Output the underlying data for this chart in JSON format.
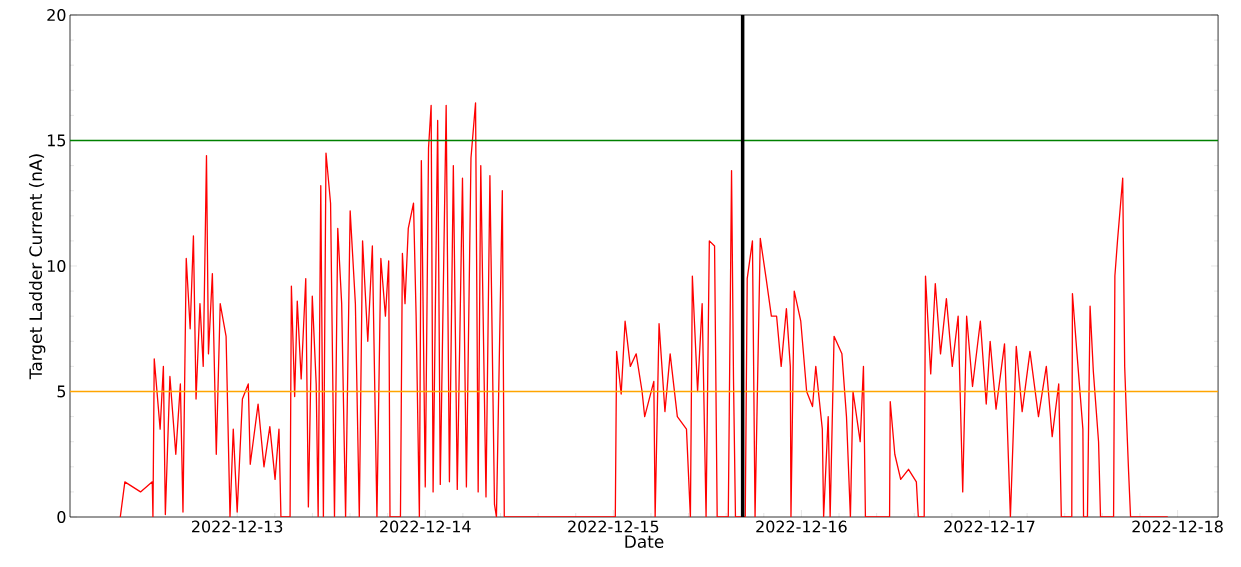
{
  "chart_data": {
    "type": "line",
    "xlabel": "Date",
    "ylabel": "Target Ladder Current (nA)",
    "xlim": [
      "2022-12-12T02:40",
      "2022-12-18T05:10"
    ],
    "xticks": [
      "2022-12-13",
      "2022-12-14",
      "2022-12-15",
      "2022-12-16",
      "2022-12-17",
      "2022-12-18"
    ],
    "ylim": [
      0,
      20
    ],
    "yticks": [
      0,
      5,
      10,
      15,
      20
    ],
    "ref_lines": [
      {
        "axis": "y",
        "value": 15,
        "color": "#008000"
      },
      {
        "axis": "y",
        "value": 5,
        "color": "#ffa500"
      },
      {
        "axis": "x",
        "value": "2022-12-15T16:30",
        "color": "#000000"
      }
    ],
    "series": [
      {
        "color": "#ff0000",
        "x": [
          "2022-12-12T09:05",
          "2022-12-12T09:40",
          "2022-12-12T11:40",
          "2022-12-12T13:10",
          "2022-12-12T13:15",
          "2022-12-12T13:25",
          "2022-12-12T14:10",
          "2022-12-12T14:35",
          "2022-12-12T14:50",
          "2022-12-12T15:25",
          "2022-12-12T16:10",
          "2022-12-12T16:45",
          "2022-12-12T17:05",
          "2022-12-12T17:30",
          "2022-12-12T18:00",
          "2022-12-12T18:25",
          "2022-12-12T18:45",
          "2022-12-12T19:15",
          "2022-12-12T19:40",
          "2022-12-12T20:05",
          "2022-12-12T20:20",
          "2022-12-12T20:50",
          "2022-12-12T21:20",
          "2022-12-12T21:50",
          "2022-12-12T22:35",
          "2022-12-12T23:05",
          "2022-12-12T23:30",
          "2022-12-13T00:00",
          "2022-12-13T00:40",
          "2022-12-13T01:25",
          "2022-12-13T01:40",
          "2022-12-13T02:40",
          "2022-12-13T03:25",
          "2022-12-13T04:10",
          "2022-12-13T04:50",
          "2022-12-13T05:20",
          "2022-12-13T05:35",
          "2022-12-13T06:45",
          "2022-12-13T06:55",
          "2022-12-13T07:20",
          "2022-12-13T07:40",
          "2022-12-13T08:10",
          "2022-12-13T08:45",
          "2022-12-13T09:05",
          "2022-12-13T09:35",
          "2022-12-13T10:05",
          "2022-12-13T10:20",
          "2022-12-13T10:40",
          "2022-12-13T11:00",
          "2022-12-13T11:20",
          "2022-12-13T11:55",
          "2022-12-13T12:25",
          "2022-12-13T12:50",
          "2022-12-13T13:20",
          "2022-12-13T13:50",
          "2022-12-13T14:25",
          "2022-12-13T15:05",
          "2022-12-13T15:35",
          "2022-12-13T16:00",
          "2022-12-13T16:40",
          "2022-12-13T17:15",
          "2022-12-13T17:50",
          "2022-12-13T18:20",
          "2022-12-13T18:55",
          "2022-12-13T19:20",
          "2022-12-13T19:30",
          "2022-12-13T20:50",
          "2022-12-13T21:05",
          "2022-12-13T21:25",
          "2022-12-13T21:50",
          "2022-12-13T22:30",
          "2022-12-13T22:50",
          "2022-12-13T23:15",
          "2022-12-13T23:30",
          "2022-12-14T00:00",
          "2022-12-14T00:25",
          "2022-12-14T00:45",
          "2022-12-14T01:00",
          "2022-12-14T01:35",
          "2022-12-14T01:55",
          "2022-12-14T02:40",
          "2022-12-14T03:05",
          "2022-12-14T03:35",
          "2022-12-14T04:05",
          "2022-12-14T04:45",
          "2022-12-14T05:15",
          "2022-12-14T05:50",
          "2022-12-14T06:25",
          "2022-12-14T06:45",
          "2022-12-14T07:05",
          "2022-12-14T07:45",
          "2022-12-14T08:15",
          "2022-12-14T08:50",
          "2022-12-14T09:05",
          "2022-12-14T09:50",
          "2022-12-14T10:05",
          "2022-12-15T00:15",
          "2022-12-15T00:25",
          "2022-12-15T01:00",
          "2022-12-15T01:30",
          "2022-12-15T02:10",
          "2022-12-15T02:55",
          "2022-12-15T03:40",
          "2022-12-15T04:00",
          "2022-12-15T05:10",
          "2022-12-15T05:20",
          "2022-12-15T05:50",
          "2022-12-15T06:35",
          "2022-12-15T07:15",
          "2022-12-15T08:10",
          "2022-12-15T09:20",
          "2022-12-15T09:50",
          "2022-12-15T10:05",
          "2022-12-15T10:45",
          "2022-12-15T11:20",
          "2022-12-15T11:50",
          "2022-12-15T12:15",
          "2022-12-15T12:55",
          "2022-12-15T13:15",
          "2022-12-15T14:40",
          "2022-12-15T15:05",
          "2022-12-15T15:20",
          "2022-12-15T15:35",
          "2022-12-15T16:50",
          "2022-12-15T17:05",
          "2022-12-15T17:45",
          "2022-12-15T18:05",
          "2022-12-15T18:45",
          "2022-12-15T19:30",
          "2022-12-15T20:10",
          "2022-12-15T20:50",
          "2022-12-15T21:25",
          "2022-12-15T22:05",
          "2022-12-15T22:35",
          "2022-12-15T22:40",
          "2022-12-15T23:05",
          "2022-12-15T23:55",
          "2022-12-16T00:40",
          "2022-12-16T01:25",
          "2022-12-16T01:50",
          "2022-12-16T02:40",
          "2022-12-16T02:50",
          "2022-12-16T03:25",
          "2022-12-16T03:40",
          "2022-12-16T04:10",
          "2022-12-16T05:10",
          "2022-12-16T05:45",
          "2022-12-16T06:15",
          "2022-12-16T06:35",
          "2022-12-16T07:30",
          "2022-12-16T07:55",
          "2022-12-16T08:10",
          "2022-12-16T11:15",
          "2022-12-16T11:20",
          "2022-12-16T11:55",
          "2022-12-16T12:40",
          "2022-12-16T13:40",
          "2022-12-16T14:40",
          "2022-12-16T14:55",
          "2022-12-16T15:40",
          "2022-12-16T15:50",
          "2022-12-16T16:30",
          "2022-12-16T17:05",
          "2022-12-16T17:45",
          "2022-12-16T18:30",
          "2022-12-16T19:15",
          "2022-12-16T20:00",
          "2022-12-16T20:35",
          "2022-12-16T21:05",
          "2022-12-16T21:50",
          "2022-12-16T22:50",
          "2022-12-16T23:35",
          "2022-12-17T00:05",
          "2022-12-17T00:50",
          "2022-12-17T01:55",
          "2022-12-17T02:40",
          "2022-12-17T03:25",
          "2022-12-17T04:10",
          "2022-12-17T05:10",
          "2022-12-17T06:15",
          "2022-12-17T07:15",
          "2022-12-17T08:00",
          "2022-12-17T08:50",
          "2022-12-17T09:10",
          "2022-12-17T10:30",
          "2022-12-17T10:35",
          "2022-12-17T11:10",
          "2022-12-17T11:55",
          "2022-12-17T12:00",
          "2022-12-17T12:30",
          "2022-12-17T12:50",
          "2022-12-17T13:15",
          "2022-12-17T13:55",
          "2022-12-17T14:10",
          "2022-12-17T15:50",
          "2022-12-17T16:00",
          "2022-12-17T16:20",
          "2022-12-17T17:00",
          "2022-12-17T17:15",
          "2022-12-17T17:30",
          "2022-12-17T17:45",
          "2022-12-17T18:00",
          "2022-12-17T22:45"
        ],
        "values": [
          0,
          1.4,
          1.0,
          1.4,
          0,
          6.3,
          3.5,
          6.0,
          0.1,
          5.6,
          2.5,
          5.3,
          0.2,
          10.3,
          7.5,
          11.2,
          4.7,
          8.5,
          6.0,
          14.4,
          6.5,
          9.7,
          2.5,
          8.5,
          7.2,
          0,
          3.5,
          0.2,
          4.7,
          5.3,
          2.1,
          4.5,
          2.0,
          3.6,
          1.5,
          3.5,
          0,
          0,
          9.2,
          4.8,
          8.6,
          5.5,
          9.5,
          0.4,
          8.8,
          5.3,
          0,
          13.2,
          0,
          14.5,
          12.5,
          0,
          11.5,
          8.5,
          0,
          12.2,
          8.5,
          0,
          11.0,
          7.0,
          10.8,
          0,
          10.3,
          8.0,
          10.2,
          0,
          0,
          10.5,
          8.5,
          11.5,
          12.5,
          8.0,
          0,
          14.2,
          1.2,
          14.7,
          16.4,
          1.0,
          15.8,
          1.3,
          16.4,
          1.4,
          14.0,
          1.1,
          13.5,
          1.2,
          14.3,
          16.5,
          1.0,
          14.0,
          0.8,
          13.6,
          0.5,
          0,
          13.0,
          0,
          0,
          6.6,
          4.9,
          7.8,
          6.0,
          6.5,
          5.0,
          4.0,
          5.4,
          0,
          7.7,
          4.2,
          6.5,
          4.0,
          3.5,
          0,
          9.6,
          5.0,
          8.5,
          0,
          11.0,
          10.8,
          0,
          0,
          13.8,
          5.5,
          0,
          0,
          9.5,
          11.0,
          0,
          11.1,
          9.5,
          8.0,
          8.0,
          6.0,
          8.3,
          6.0,
          0,
          9.0,
          7.8,
          5.0,
          4.4,
          6.0,
          3.5,
          0,
          4.0,
          0,
          7.2,
          6.5,
          4.0,
          0,
          5.0,
          3.0,
          6.0,
          0,
          0,
          4.6,
          2.5,
          1.5,
          1.9,
          1.4,
          0,
          0,
          9.6,
          5.7,
          9.3,
          6.5,
          8.7,
          6.0,
          8.0,
          1.0,
          8.0,
          5.2,
          7.8,
          4.5,
          7.0,
          4.3,
          6.9,
          0,
          6.8,
          4.2,
          6.6,
          4.0,
          6.0,
          3.2,
          5.3,
          0,
          0,
          8.9,
          6.5,
          3.5,
          0,
          0,
          8.4,
          5.8,
          3.0,
          0,
          0,
          9.6,
          11.0,
          13.5,
          6.0,
          3.8,
          1.8,
          0,
          0
        ]
      }
    ]
  }
}
